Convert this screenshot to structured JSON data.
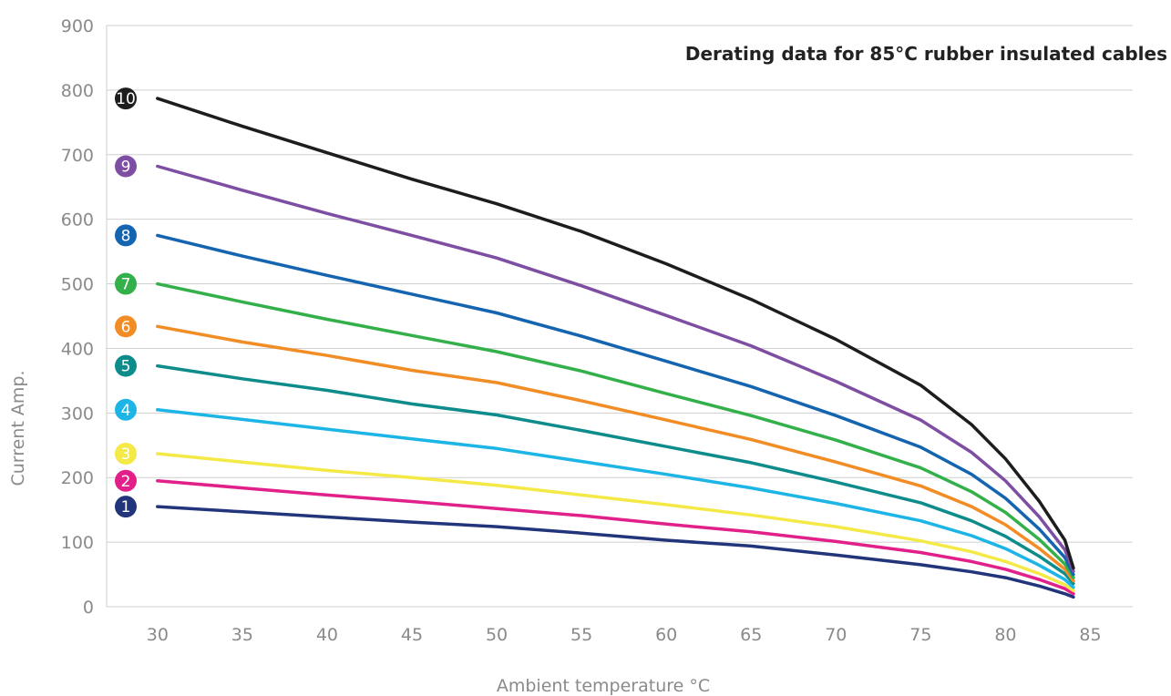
{
  "chart_data": {
    "type": "line",
    "title": "Derating data for 85°C rubber insulated cables",
    "xlabel": "Ambient temperature °C",
    "ylabel": "Current Amp.",
    "xlim": [
      27,
      87.5
    ],
    "ylim": [
      0,
      900
    ],
    "xticks": [
      "30",
      "35",
      "40",
      "45",
      "50",
      "55",
      "60",
      "65",
      "70",
      "75",
      "80",
      "85"
    ],
    "yticks": [
      "0",
      "100",
      "200",
      "300",
      "400",
      "500",
      "600",
      "700",
      "800",
      "900"
    ],
    "grid": "horizontal",
    "x": [
      30,
      35,
      40,
      45,
      50,
      55,
      60,
      65,
      70,
      75,
      78,
      80,
      82,
      83.5,
      84
    ],
    "series": [
      {
        "name": "1",
        "color": "#23357a",
        "values": [
          155,
          147,
          139,
          131,
          124,
          114,
          103,
          94,
          80,
          65,
          54,
          45,
          32,
          20,
          15
        ]
      },
      {
        "name": "2",
        "color": "#e2208a",
        "values": [
          195,
          184,
          173,
          163,
          152,
          141,
          128,
          116,
          101,
          84,
          70,
          58,
          42,
          28,
          20
        ]
      },
      {
        "name": "3",
        "color": "#f4e946",
        "values": [
          237,
          224,
          211,
          200,
          188,
          173,
          158,
          142,
          124,
          102,
          85,
          70,
          51,
          34,
          25
        ]
      },
      {
        "name": "4",
        "color": "#1cb5e6",
        "values": [
          305,
          290,
          275,
          260,
          245,
          225,
          205,
          184,
          160,
          133,
          110,
          90,
          64,
          42,
          30
        ]
      },
      {
        "name": "5",
        "color": "#0e8c8c",
        "values": [
          373,
          353,
          335,
          314,
          297,
          273,
          248,
          223,
          193,
          161,
          133,
          109,
          78,
          51,
          36
        ]
      },
      {
        "name": "6",
        "color": "#f28c25",
        "values": [
          434,
          410,
          389,
          366,
          347,
          319,
          289,
          259,
          224,
          187,
          155,
          127,
          90,
          58,
          40
        ]
      },
      {
        "name": "7",
        "color": "#33b04a",
        "values": [
          500,
          472,
          445,
          420,
          395,
          365,
          330,
          296,
          258,
          215,
          178,
          146,
          104,
          66,
          45
        ]
      },
      {
        "name": "8",
        "color": "#1464b0",
        "values": [
          575,
          543,
          513,
          484,
          455,
          419,
          380,
          341,
          296,
          247,
          205,
          168,
          120,
          76,
          50
        ]
      },
      {
        "name": "9",
        "color": "#7d4ea2",
        "values": [
          682,
          645,
          609,
          575,
          540,
          497,
          451,
          404,
          349,
          289,
          239,
          195,
          139,
          88,
          55
        ]
      },
      {
        "name": "10",
        "color": "#1d1d1d",
        "values": [
          787,
          744,
          703,
          662,
          624,
          581,
          531,
          476,
          414,
          343,
          282,
          229,
          163,
          103,
          60
        ]
      }
    ]
  }
}
